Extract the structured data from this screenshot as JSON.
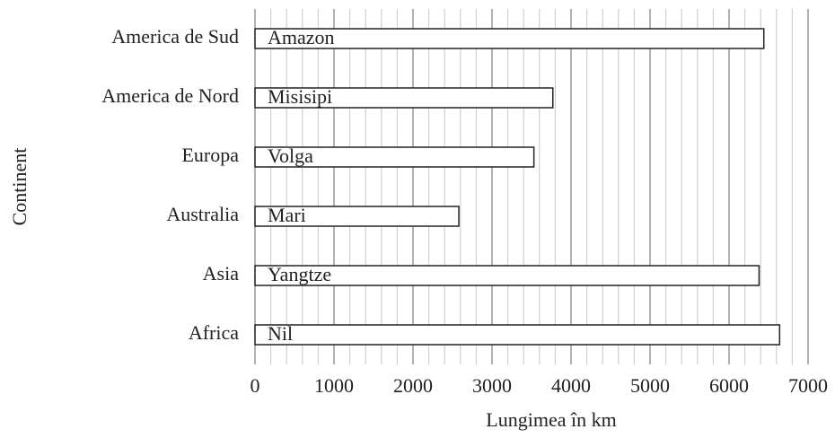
{
  "chart_data": {
    "type": "barh",
    "categories": [
      "America de Sud",
      "America de Nord",
      "Europa",
      "Australia",
      "Asia",
      "Africa"
    ],
    "bar_labels": [
      "Amazon",
      "Misisipi",
      "Volga",
      "Mari",
      "Yangtze",
      "Nil"
    ],
    "values": [
      6440,
      3770,
      3530,
      2580,
      6380,
      6640
    ],
    "color": "#ffffff",
    "edge_color": "#222222",
    "xlabel": "Lungimea în km",
    "ylabel": "Continent",
    "xlim": [
      0,
      7000
    ],
    "xticks": [
      0,
      1000,
      2000,
      3000,
      4000,
      5000,
      6000,
      7000
    ],
    "xminorticks": [
      200,
      400,
      600,
      800,
      1200,
      1400,
      1600,
      1800,
      2200,
      2400,
      2600,
      2800,
      3200,
      3400,
      3600,
      3800,
      4200,
      4400,
      4600,
      4800,
      5200,
      5400,
      5600,
      5800,
      6200,
      6400,
      6600,
      6800
    ],
    "grid": true
  }
}
